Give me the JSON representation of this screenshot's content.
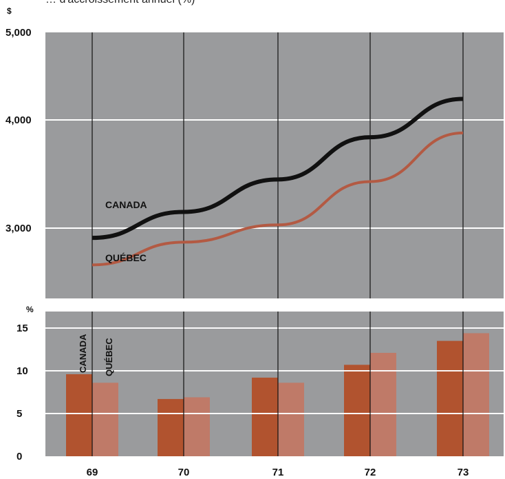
{
  "header": {
    "subtitle": "…  d'accroissement annuel (%)"
  },
  "colors": {
    "panel": "#9a9b9d",
    "grid": "#ffffff",
    "canada_line": "#111111",
    "quebec_line": "#b35a43",
    "canada_bar": "#b1532f",
    "quebec_bar": "#bf7a68"
  },
  "chart_data": [
    {
      "type": "line",
      "unit_label": "$",
      "categories": [
        "69",
        "70",
        "71",
        "72",
        "73"
      ],
      "ylim": [
        2550,
        5000
      ],
      "yticks": [
        3000,
        4000,
        5000
      ],
      "ytick_labels": [
        "3,000",
        "4,000",
        "5,000"
      ],
      "grid": true,
      "series": [
        {
          "name": "CANADA",
          "values": [
            2910,
            3150,
            3450,
            3840,
            4240
          ]
        },
        {
          "name": "QUÉBEC",
          "values": [
            2660,
            2870,
            3030,
            3430,
            3880
          ]
        }
      ]
    },
    {
      "type": "bar",
      "unit_label": "%",
      "categories": [
        "69",
        "70",
        "71",
        "72",
        "73"
      ],
      "ylim": [
        0,
        17
      ],
      "yticks": [
        0,
        5,
        10,
        15
      ],
      "ytick_labels": [
        "0",
        "5",
        "10",
        "15"
      ],
      "grid": true,
      "series": [
        {
          "name": "CANADA",
          "values": [
            9.6,
            6.7,
            9.2,
            10.7,
            13.5
          ]
        },
        {
          "name": "QUÉBEC",
          "values": [
            8.6,
            6.9,
            8.6,
            12.1,
            14.4
          ]
        }
      ]
    }
  ]
}
